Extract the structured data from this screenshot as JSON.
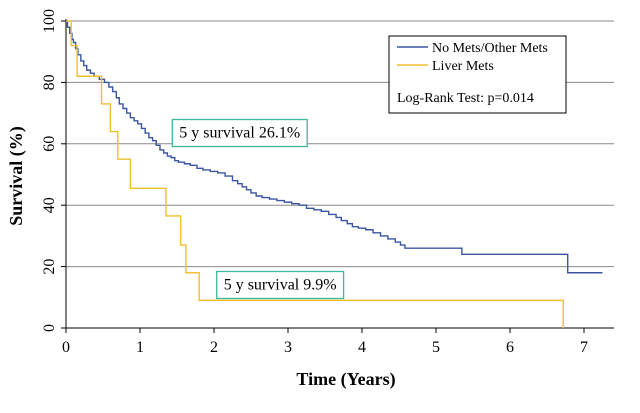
{
  "chart_data": {
    "type": "line",
    "subtype": "kaplan-meier step",
    "xlabel": "Time (Years)",
    "ylabel": "Survival (%)",
    "xlim": [
      0,
      7.5
    ],
    "ylim": [
      0,
      100
    ],
    "xticks": [
      0,
      1,
      2,
      3,
      4,
      5,
      6,
      7
    ],
    "yticks": [
      0,
      20,
      40,
      60,
      80,
      100
    ],
    "grid": "horizontal",
    "legend": {
      "placement": "top-right",
      "entries": [
        "No Mets/Other Mets",
        "Liver Mets"
      ],
      "note": "Log-Rank Test: p=0.014"
    },
    "annotations": [
      {
        "text": "5 y survival 26.1%",
        "x": 1.45,
        "y": 64,
        "color": "#3cb89a"
      },
      {
        "text": "5 y survival 9.9%",
        "x": 2.05,
        "y": 14.5,
        "color": "#3cb89a"
      }
    ],
    "series": [
      {
        "name": "No Mets/Other Mets",
        "color": "#3a55a4",
        "x": [
          0,
          0.02,
          0.05,
          0.08,
          0.1,
          0.13,
          0.16,
          0.2,
          0.24,
          0.28,
          0.33,
          0.38,
          0.45,
          0.52,
          0.58,
          0.63,
          0.68,
          0.72,
          0.77,
          0.82,
          0.87,
          0.92,
          0.97,
          1.02,
          1.07,
          1.12,
          1.17,
          1.22,
          1.27,
          1.32,
          1.37,
          1.42,
          1.47,
          1.52,
          1.6,
          1.68,
          1.77,
          1.85,
          1.95,
          2.05,
          2.15,
          2.25,
          2.32,
          2.38,
          2.44,
          2.5,
          2.57,
          2.65,
          2.75,
          2.85,
          2.95,
          3.05,
          3.15,
          3.25,
          3.35,
          3.45,
          3.55,
          3.65,
          3.72,
          3.8,
          3.87,
          3.95,
          4.05,
          4.15,
          4.25,
          4.35,
          4.45,
          4.52,
          4.58,
          5.35,
          6.78,
          7.25
        ],
        "y": [
          100,
          98,
          96,
          94,
          93,
          91,
          89,
          87,
          85.5,
          84,
          83,
          82,
          81,
          80,
          78.5,
          77,
          75,
          73,
          71.5,
          70,
          68.5,
          67.5,
          66.5,
          65,
          63.5,
          62,
          61,
          59.5,
          58,
          57,
          56,
          55.5,
          54.5,
          54,
          53.5,
          53,
          52,
          51.5,
          51,
          50.5,
          49.5,
          48,
          47,
          46,
          45,
          44,
          43,
          42.5,
          42,
          41.5,
          41,
          40.5,
          40,
          39,
          38.5,
          38,
          37,
          36,
          35,
          34,
          33,
          32.5,
          32,
          31,
          30,
          29,
          28,
          27,
          26,
          24,
          18,
          18
        ]
      },
      {
        "name": "Liver Mets",
        "color": "#f0c030",
        "x": [
          0,
          0.07,
          0.15,
          0.48,
          0.6,
          0.7,
          0.87,
          1.35,
          1.55,
          1.62,
          1.8,
          6.7,
          6.72
        ],
        "y": [
          100,
          92,
          82,
          73,
          64,
          55,
          45.5,
          36.5,
          27,
          18,
          9,
          9,
          0
        ]
      }
    ]
  }
}
